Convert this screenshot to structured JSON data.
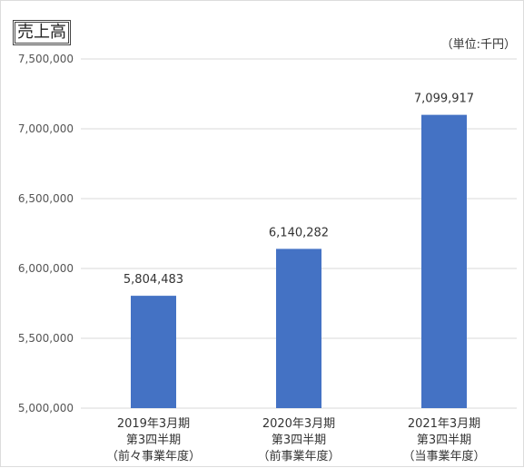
{
  "chart_data": {
    "type": "bar",
    "title": "売上高",
    "unit_label": "（単位:千円）",
    "categories": [
      [
        "2019年3月期",
        "第3四半期",
        "（前々事業年度）"
      ],
      [
        "2020年3月期",
        "第3四半期",
        "（前事業年度）"
      ],
      [
        "2021年3月期",
        "第3四半期",
        "（当事業年度）"
      ]
    ],
    "values": [
      5804483,
      6140282,
      7099917
    ],
    "value_labels": [
      "5,804,483",
      "6,140,282",
      "7,099,917"
    ],
    "yticks": [
      5000000,
      5500000,
      6000000,
      6500000,
      7000000,
      7500000
    ],
    "ytick_labels": [
      "5,000,000",
      "5,500,000",
      "6,000,000",
      "6,500,000",
      "7,000,000",
      "7,500,000"
    ],
    "ylim": [
      5000000,
      7500000
    ],
    "grid": true,
    "bar_color": "#4472c4",
    "grid_color": "#d9d9d9"
  }
}
